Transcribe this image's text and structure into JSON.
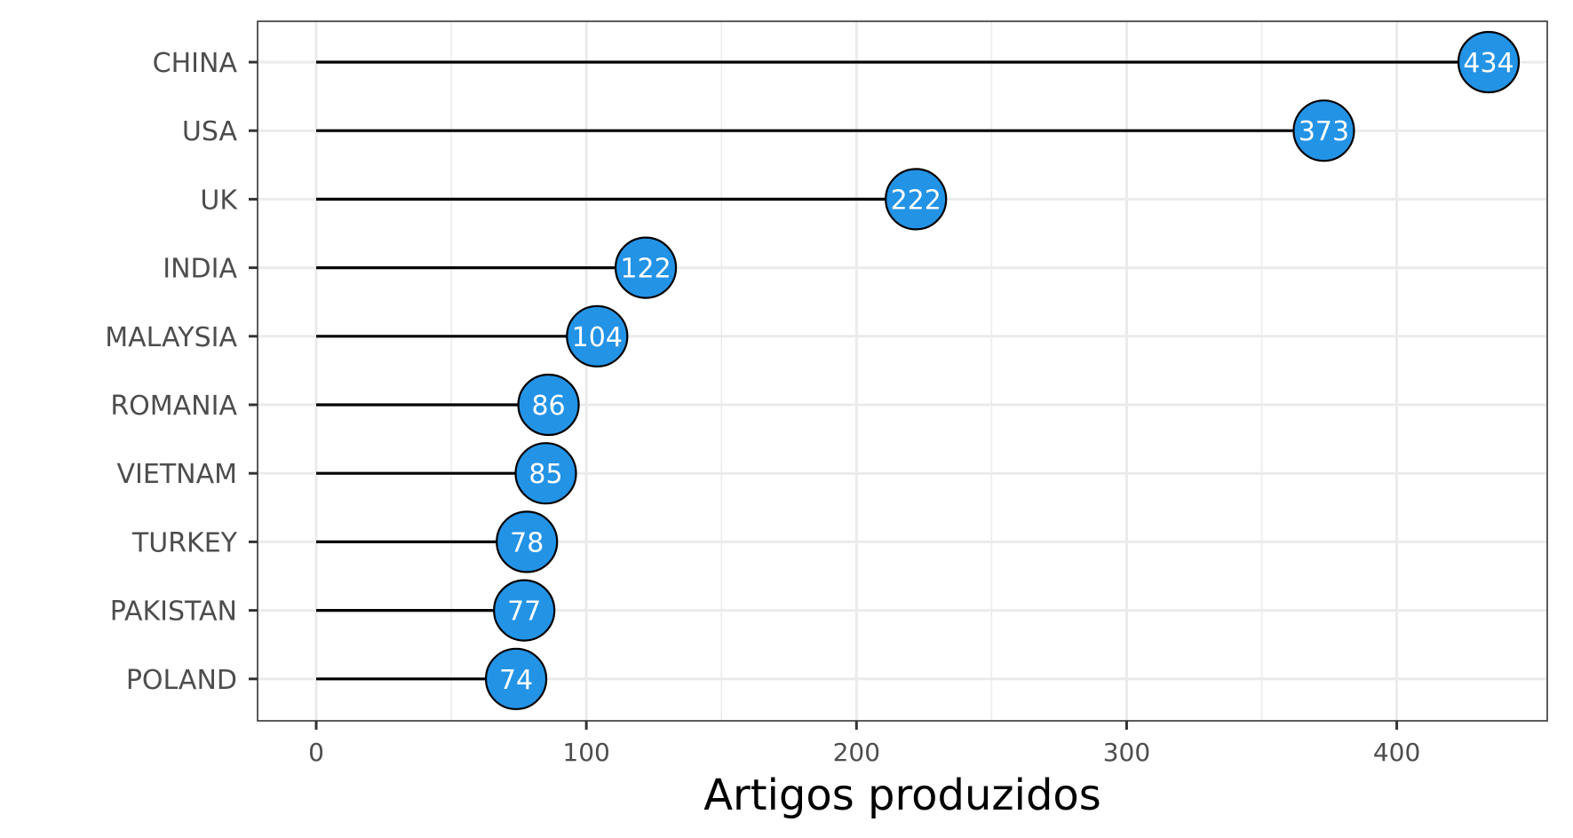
{
  "chart_data": {
    "type": "lollipop",
    "categories": [
      "CHINA",
      "USA",
      "UK",
      "INDIA",
      "MALAYSIA",
      "ROMANIA",
      "VIETNAM",
      "TURKEY",
      "PAKISTAN",
      "POLAND"
    ],
    "values": [
      434,
      373,
      222,
      122,
      104,
      86,
      85,
      78,
      77,
      74
    ],
    "value_labels": [
      "434",
      "373",
      "222",
      "122",
      "104",
      "86",
      "85",
      "78",
      "77",
      "74"
    ],
    "xlabel": "Artigos produzidos",
    "ylabel": "",
    "xlim": [
      -21.7,
      455.7
    ],
    "x_ticks": [
      0,
      100,
      200,
      300,
      400
    ],
    "x_tick_labels": [
      "0",
      "100",
      "200",
      "300",
      "400"
    ],
    "grid": true,
    "legend": "none",
    "colors": {
      "point_fill": "#2393e6",
      "point_stroke": "#000000",
      "stem": "#000000",
      "grid": "#ebebeb",
      "panel_border": "#333333",
      "label_text": "#ffffff"
    }
  }
}
